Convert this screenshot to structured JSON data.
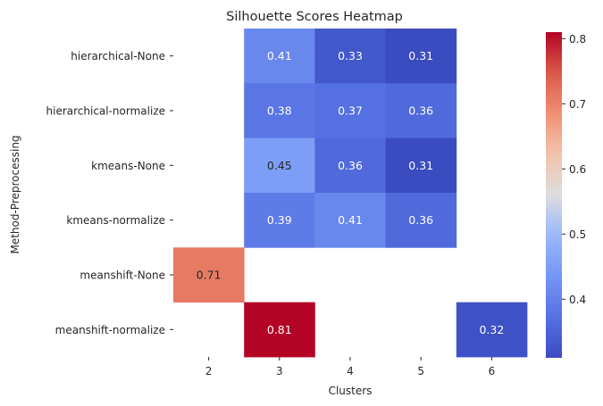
{
  "chart_data": {
    "type": "heatmap",
    "title": "Silhouette Scores Heatmap",
    "xlabel": "Clusters",
    "ylabel": "Method-Preprocessing",
    "x_categories": [
      "2",
      "3",
      "4",
      "5",
      "6"
    ],
    "y_categories": [
      "hierarchical-None",
      "hierarchical-normalize",
      "kmeans-None",
      "kmeans-normalize",
      "meanshift-None",
      "meanshift-normalize"
    ],
    "values": [
      [
        null,
        0.41,
        0.33,
        0.31,
        null
      ],
      [
        null,
        0.38,
        0.37,
        0.36,
        null
      ],
      [
        null,
        0.45,
        0.36,
        0.31,
        null
      ],
      [
        null,
        0.39,
        0.41,
        0.36,
        null
      ],
      [
        0.71,
        null,
        null,
        null,
        null
      ],
      [
        null,
        0.81,
        null,
        null,
        0.32
      ]
    ],
    "colormap": "coolwarm",
    "vmin": 0.31,
    "vmax": 0.81,
    "colorbar_ticks": [
      "0.4",
      "0.5",
      "0.6",
      "0.7",
      "0.8"
    ],
    "annotations": true
  }
}
